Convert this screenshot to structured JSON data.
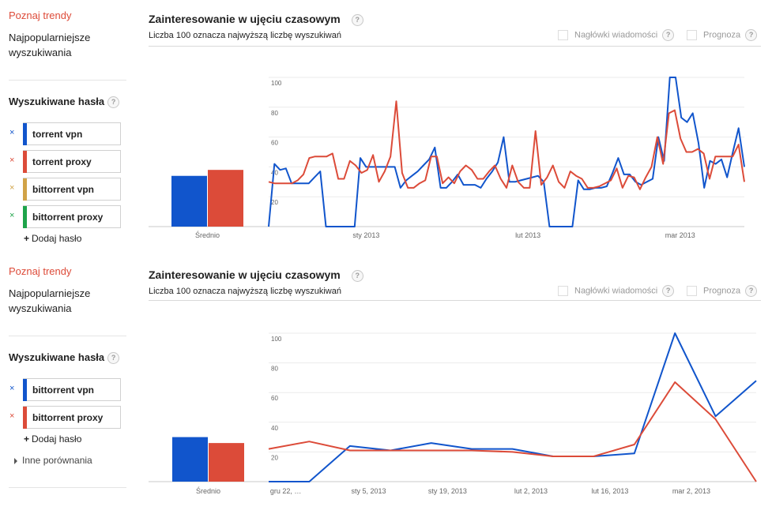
{
  "colors": {
    "blue": "#1155cc",
    "red": "#dc4b39",
    "orange": "#d1a347",
    "green": "#1ea44a"
  },
  "panels": [
    {
      "sidebar": {
        "explore_link": "Poznaj trendy",
        "top_searches": "Najpopularniejsze wyszukiwania",
        "terms_heading": "Wyszukiwane hasła",
        "help": "?",
        "terms": [
          {
            "label": "torrent vpn",
            "color": "#1155cc",
            "remove": "×"
          },
          {
            "label": "torrent proxy",
            "color": "#dc4b39",
            "remove": "×"
          },
          {
            "label": "bittorrent vpn",
            "color": "#d1a347",
            "remove": "×"
          },
          {
            "label": "bittorrent proxy",
            "color": "#1ea44a",
            "remove": "×"
          }
        ],
        "add_term": "Dodaj hasło",
        "add_plus": "+"
      },
      "main": {
        "title": "Zainteresowanie w ujęciu czasowym",
        "subtitle": "Liczba 100 oznacza najwyższą liczbę wyszukiwań",
        "news_headlines": "Nagłówki wiadomości",
        "forecast": "Prognoza",
        "help": "?"
      },
      "chart_data": {
        "type": "line",
        "ylim": [
          0,
          100
        ],
        "yticks": [
          "100",
          "80",
          "60",
          "40",
          "20"
        ],
        "x_labels": [
          "sty 2013",
          "lut 2013",
          "mar 2013"
        ],
        "x_label_positions": [
          0.205,
          0.545,
          0.865
        ],
        "average_label": "Średnio",
        "average": [
          {
            "color": "#1155cc",
            "value": 34
          },
          {
            "color": "#dc4b39",
            "value": 38
          }
        ],
        "series": [
          {
            "color": "#1155cc",
            "values": [
              0,
              42,
              38,
              39,
              29,
              29,
              29,
              29,
              33,
              37,
              0,
              0,
              0,
              0,
              0,
              0,
              46,
              40,
              40,
              40,
              40,
              40,
              40,
              26,
              31,
              34,
              37,
              41,
              45,
              53,
              26,
              26,
              30,
              35,
              28,
              28,
              28,
              26,
              32,
              37,
              43,
              60,
              30,
              30,
              31,
              32,
              33,
              34,
              30,
              0,
              0,
              0,
              0,
              0,
              31,
              25,
              25,
              26,
              26,
              27,
              36,
              46,
              35,
              35,
              30,
              28,
              30,
              32,
              60,
              44,
              100,
              100,
              73,
              70,
              76,
              56,
              26,
              44,
              42,
              45,
              33,
              50,
              66,
              40
            ]
          },
          {
            "color": "#dc4b39",
            "values": [
              30,
              29,
              29,
              29,
              29,
              31,
              35,
              46,
              47,
              47,
              47,
              49,
              32,
              32,
              44,
              41,
              36,
              38,
              48,
              30,
              37,
              47,
              84,
              36,
              26,
              26,
              29,
              31,
              47,
              47,
              29,
              33,
              29,
              37,
              41,
              38,
              32,
              32,
              37,
              41,
              32,
              26,
              41,
              30,
              26,
              26,
              64,
              28,
              33,
              41,
              30,
              26,
              37,
              34,
              32,
              26,
              26,
              27,
              29,
              31,
              39,
              26,
              34,
              33,
              25,
              33,
              40,
              60,
              42,
              76,
              78,
              59,
              50,
              50,
              52,
              49,
              32,
              47,
              47,
              47,
              47,
              55,
              30
            ]
          }
        ]
      }
    },
    {
      "sidebar": {
        "explore_link": "Poznaj trendy",
        "top_searches": "Najpopularniejsze wyszukiwania",
        "terms_heading": "Wyszukiwane hasła",
        "help": "?",
        "terms": [
          {
            "label": "bittorrent vpn",
            "color": "#1155cc",
            "remove": "×"
          },
          {
            "label": "bittorrent proxy",
            "color": "#dc4b39",
            "remove": "×"
          }
        ],
        "add_term": "Dodaj hasło",
        "add_plus": "+",
        "other_comparisons": "Inne porównania"
      },
      "main": {
        "title": "Zainteresowanie w ujęciu czasowym",
        "subtitle": "Liczba 100 oznacza najwyższą liczbę wyszukiwań",
        "news_headlines": "Nagłówki wiadomości",
        "forecast": "Prognoza",
        "help": "?"
      },
      "chart_data": {
        "type": "line",
        "ylim": [
          0,
          100
        ],
        "yticks": [
          "100",
          "80",
          "60",
          "40",
          "20"
        ],
        "x_labels": [
          "gru 22, …",
          "sty 5, 2013",
          "sty 19, 2013",
          "lut 2, 2013",
          "lut 16, 2013",
          "mar 2, 2013"
        ],
        "x_label_positions": [
          0.035,
          0.205,
          0.367,
          0.538,
          0.7,
          0.867
        ],
        "average_label": "Średnio",
        "average": [
          {
            "color": "#1155cc",
            "value": 30
          },
          {
            "color": "#dc4b39",
            "value": 26
          }
        ],
        "series": [
          {
            "color": "#1155cc",
            "values": [
              0,
              0,
              24,
              21,
              26,
              22,
              22,
              17,
              17,
              19,
              100,
              44,
              68
            ]
          },
          {
            "color": "#dc4b39",
            "values": [
              22,
              27,
              21,
              21,
              21,
              21,
              20,
              17,
              17,
              25,
              67,
              42,
              0
            ]
          }
        ]
      }
    }
  ]
}
